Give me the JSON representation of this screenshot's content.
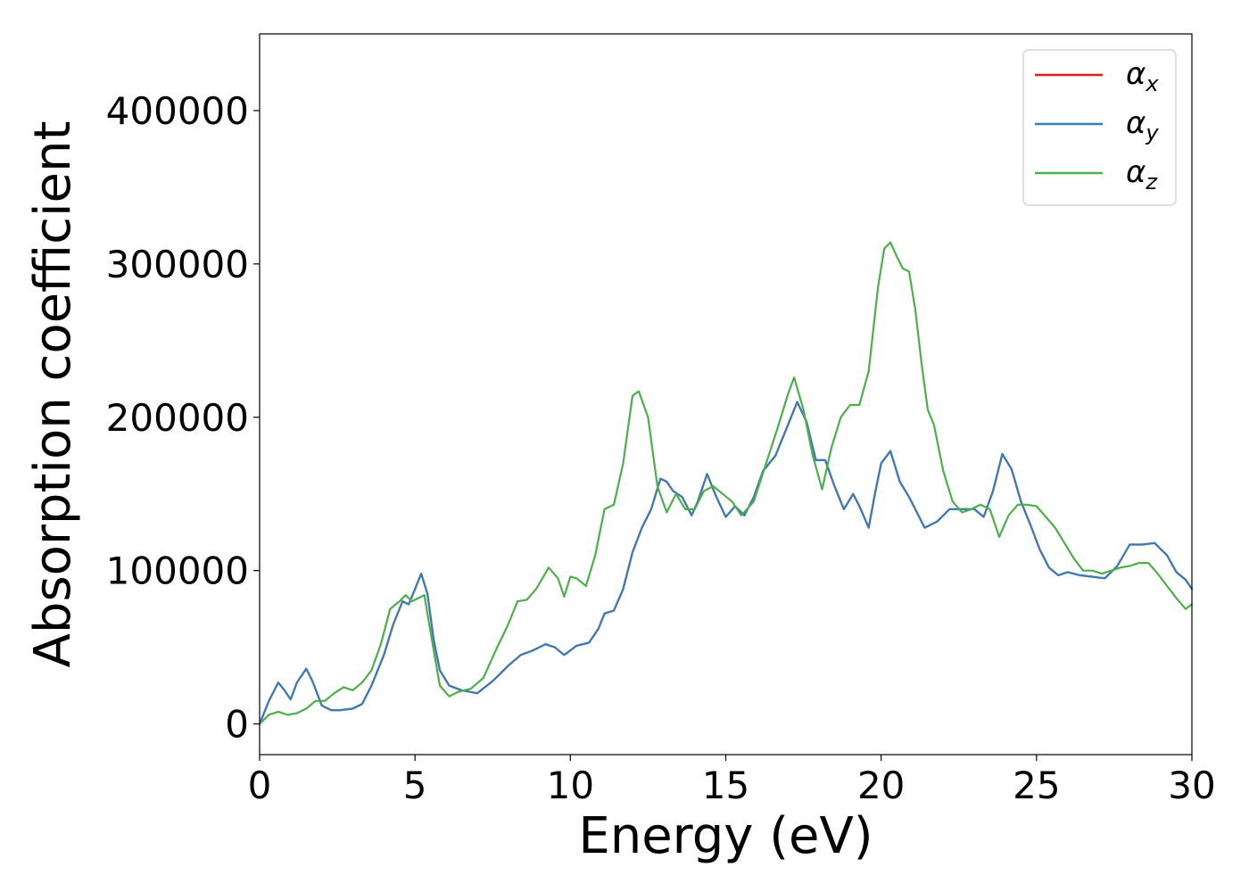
{
  "chart_data": {
    "type": "line",
    "title": "",
    "xlabel": "Energy (eV)",
    "ylabel": "Absorption coefficient",
    "xlim": [
      0,
      30
    ],
    "ylim": [
      -20000,
      450000
    ],
    "xticks": [
      0,
      5,
      10,
      15,
      20,
      25,
      30
    ],
    "yticks": [
      0,
      100000,
      200000,
      300000,
      400000
    ],
    "xtick_labels": [
      "0",
      "5",
      "10",
      "15",
      "20",
      "25",
      "30"
    ],
    "ytick_labels": [
      "0",
      "100000",
      "200000",
      "300000",
      "400000"
    ],
    "grid": false,
    "legend_position": "top-right",
    "series": [
      {
        "name": "α",
        "subscript": "x",
        "color": "#e41a1c",
        "x": [
          0,
          0.3,
          0.6,
          0.8,
          1.0,
          1.2,
          1.5,
          1.7,
          2.0,
          2.3,
          2.6,
          3.0,
          3.3,
          3.6,
          4.0,
          4.3,
          4.6,
          4.8,
          5.0,
          5.2,
          5.4,
          5.6,
          5.8,
          6.1,
          6.5,
          7.0,
          7.5,
          8.0,
          8.4,
          8.8,
          9.2,
          9.5,
          9.8,
          10.2,
          10.6,
          10.9,
          11.1,
          11.4,
          11.7,
          12.0,
          12.3,
          12.6,
          12.9,
          13.1,
          13.3,
          13.6,
          13.9,
          14.1,
          14.4,
          14.7,
          15.0,
          15.3,
          15.6,
          15.9,
          16.2,
          16.6,
          17.0,
          17.3,
          17.6,
          17.9,
          18.2,
          18.5,
          18.8,
          19.1,
          19.3,
          19.6,
          19.8,
          20.0,
          20.3,
          20.6,
          20.9,
          21.1,
          21.4,
          21.8,
          22.2,
          22.6,
          23.0,
          23.3,
          23.6,
          23.9,
          24.2,
          24.5,
          24.8,
          25.1,
          25.4,
          25.7,
          26.0,
          26.4,
          26.8,
          27.2,
          27.6,
          28.0,
          28.4,
          28.8,
          29.2,
          29.5,
          29.8,
          30.0
        ],
        "values": [
          0,
          15000,
          27000,
          22000,
          16000,
          27000,
          36000,
          28000,
          12000,
          9000,
          9000,
          10000,
          13000,
          25000,
          45000,
          65000,
          80000,
          78000,
          88000,
          98000,
          85000,
          55000,
          35000,
          25000,
          22000,
          20000,
          28000,
          38000,
          45000,
          48000,
          52000,
          50000,
          45000,
          51000,
          53000,
          62000,
          72000,
          74000,
          88000,
          112000,
          128000,
          140000,
          160000,
          158000,
          152000,
          148000,
          136000,
          145000,
          163000,
          148000,
          135000,
          142000,
          136000,
          148000,
          165000,
          175000,
          195000,
          210000,
          197000,
          172000,
          172000,
          155000,
          140000,
          150000,
          142000,
          128000,
          150000,
          170000,
          178000,
          158000,
          148000,
          140000,
          128000,
          132000,
          140000,
          140000,
          140000,
          135000,
          152000,
          176000,
          166000,
          145000,
          130000,
          114000,
          102000,
          97000,
          99000,
          97000,
          96000,
          95000,
          103000,
          117000,
          117000,
          118000,
          110000,
          99000,
          94000,
          88000
        ]
      },
      {
        "name": "α",
        "subscript": "y",
        "color": "#377eb8",
        "x": [
          0,
          0.3,
          0.6,
          0.8,
          1.0,
          1.2,
          1.5,
          1.7,
          2.0,
          2.3,
          2.6,
          3.0,
          3.3,
          3.6,
          4.0,
          4.3,
          4.6,
          4.8,
          5.0,
          5.2,
          5.4,
          5.6,
          5.8,
          6.1,
          6.5,
          7.0,
          7.5,
          8.0,
          8.4,
          8.8,
          9.2,
          9.5,
          9.8,
          10.2,
          10.6,
          10.9,
          11.1,
          11.4,
          11.7,
          12.0,
          12.3,
          12.6,
          12.9,
          13.1,
          13.3,
          13.6,
          13.9,
          14.1,
          14.4,
          14.7,
          15.0,
          15.3,
          15.6,
          15.9,
          16.2,
          16.6,
          17.0,
          17.3,
          17.6,
          17.9,
          18.2,
          18.5,
          18.8,
          19.1,
          19.3,
          19.6,
          19.8,
          20.0,
          20.3,
          20.6,
          20.9,
          21.1,
          21.4,
          21.8,
          22.2,
          22.6,
          23.0,
          23.3,
          23.6,
          23.9,
          24.2,
          24.5,
          24.8,
          25.1,
          25.4,
          25.7,
          26.0,
          26.4,
          26.8,
          27.2,
          27.6,
          28.0,
          28.4,
          28.8,
          29.2,
          29.5,
          29.8,
          30.0
        ],
        "values": [
          0,
          15000,
          27000,
          22000,
          16000,
          27000,
          36000,
          28000,
          12000,
          9000,
          9000,
          10000,
          13000,
          25000,
          45000,
          65000,
          80000,
          78000,
          88000,
          98000,
          85000,
          55000,
          35000,
          25000,
          22000,
          20000,
          28000,
          38000,
          45000,
          48000,
          52000,
          50000,
          45000,
          51000,
          53000,
          62000,
          72000,
          74000,
          88000,
          112000,
          128000,
          140000,
          160000,
          158000,
          152000,
          148000,
          136000,
          145000,
          163000,
          148000,
          135000,
          142000,
          136000,
          148000,
          165000,
          175000,
          195000,
          210000,
          197000,
          172000,
          172000,
          155000,
          140000,
          150000,
          142000,
          128000,
          150000,
          170000,
          178000,
          158000,
          148000,
          140000,
          128000,
          132000,
          140000,
          140000,
          140000,
          135000,
          152000,
          176000,
          166000,
          145000,
          130000,
          114000,
          102000,
          97000,
          99000,
          97000,
          96000,
          95000,
          103000,
          117000,
          117000,
          118000,
          110000,
          99000,
          94000,
          88000
        ]
      },
      {
        "name": "α",
        "subscript": "z",
        "color": "#4daf4a",
        "x": [
          0,
          0.3,
          0.6,
          0.9,
          1.2,
          1.5,
          1.8,
          2.1,
          2.4,
          2.7,
          3.0,
          3.3,
          3.6,
          3.9,
          4.2,
          4.5,
          4.7,
          4.9,
          5.1,
          5.3,
          5.5,
          5.8,
          6.1,
          6.4,
          6.8,
          7.2,
          7.6,
          8.0,
          8.3,
          8.6,
          8.9,
          9.3,
          9.6,
          9.8,
          10.0,
          10.2,
          10.5,
          10.8,
          11.1,
          11.4,
          11.7,
          12.0,
          12.2,
          12.5,
          12.8,
          13.1,
          13.4,
          13.7,
          14.0,
          14.3,
          14.6,
          14.9,
          15.2,
          15.5,
          15.9,
          16.3,
          16.7,
          17.0,
          17.2,
          17.5,
          17.8,
          18.1,
          18.4,
          18.7,
          19.0,
          19.3,
          19.6,
          19.9,
          20.1,
          20.3,
          20.5,
          20.7,
          20.9,
          21.1,
          21.3,
          21.5,
          21.7,
          22.0,
          22.3,
          22.6,
          22.9,
          23.2,
          23.5,
          23.8,
          24.1,
          24.4,
          24.7,
          25.0,
          25.3,
          25.6,
          25.9,
          26.2,
          26.5,
          26.8,
          27.1,
          27.4,
          27.7,
          28.0,
          28.3,
          28.6,
          28.9,
          29.2,
          29.5,
          29.8,
          30.0
        ],
        "values": [
          0,
          6000,
          8000,
          6000,
          7000,
          10000,
          15000,
          15000,
          20000,
          24000,
          22000,
          27000,
          35000,
          52000,
          75000,
          80000,
          84000,
          80000,
          82000,
          84000,
          60000,
          25000,
          18000,
          21000,
          23000,
          30000,
          48000,
          65000,
          80000,
          81000,
          88000,
          102000,
          95000,
          83000,
          96000,
          95000,
          90000,
          110000,
          140000,
          143000,
          170000,
          214000,
          217000,
          200000,
          155000,
          138000,
          150000,
          140000,
          140000,
          152000,
          155000,
          150000,
          145000,
          136000,
          145000,
          170000,
          195000,
          215000,
          226000,
          205000,
          175000,
          153000,
          180000,
          200000,
          208000,
          208000,
          230000,
          285000,
          310000,
          314000,
          305000,
          297000,
          295000,
          270000,
          235000,
          205000,
          195000,
          165000,
          145000,
          138000,
          140000,
          143000,
          140000,
          122000,
          136000,
          143000,
          143000,
          142000,
          135000,
          128000,
          118000,
          108000,
          100000,
          100000,
          98000,
          100000,
          102000,
          103000,
          105000,
          105000,
          98000,
          90000,
          82000,
          75000,
          78000
        ]
      }
    ]
  }
}
